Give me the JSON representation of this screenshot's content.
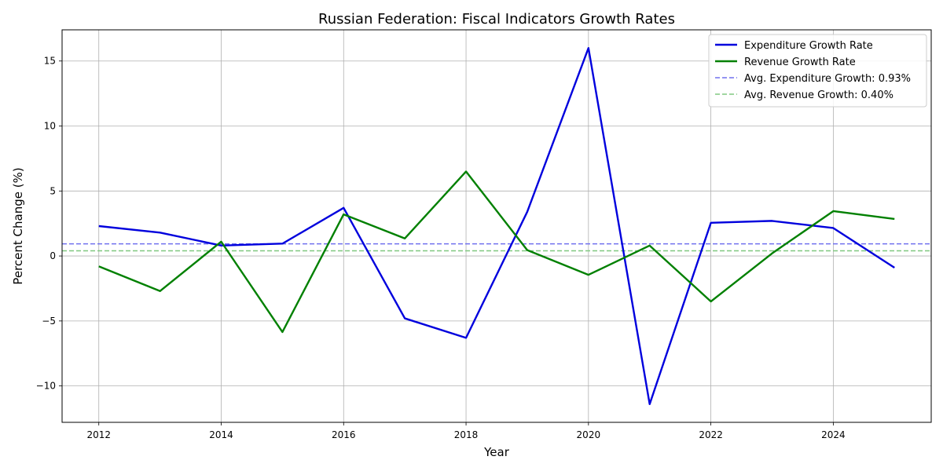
{
  "chart_data": {
    "type": "line",
    "title": "Russian Federation: Fiscal Indicators Growth Rates",
    "xlabel": "Year",
    "ylabel": "Percent Change (%)",
    "xlim": [
      2011.4,
      2025.6
    ],
    "ylim": [
      -12.8,
      17.4
    ],
    "xticks": [
      2012,
      2014,
      2016,
      2018,
      2020,
      2022,
      2024
    ],
    "xtick_labels": [
      "2012",
      "2014",
      "2016",
      "2018",
      "2020",
      "2022",
      "2024"
    ],
    "yticks": [
      -10,
      -5,
      0,
      5,
      10,
      15
    ],
    "ytick_labels": [
      "−10",
      "−5",
      "0",
      "5",
      "10",
      "15"
    ],
    "grid": true,
    "legend_position": "top-right",
    "x": [
      2012,
      2013,
      2014,
      2015,
      2016,
      2017,
      2018,
      2019,
      2020,
      2021,
      2022,
      2023,
      2024,
      2025
    ],
    "series": [
      {
        "name": "Expenditure Growth Rate",
        "color": "#0000dd",
        "style": "solid",
        "values": [
          2.3,
          1.8,
          0.8,
          0.95,
          3.7,
          -4.8,
          -6.3,
          3.4,
          16.0,
          -11.4,
          2.55,
          2.7,
          2.15,
          -0.9
        ]
      },
      {
        "name": "Revenue Growth Rate",
        "color": "#008000",
        "style": "solid",
        "values": [
          -0.8,
          -2.7,
          1.1,
          -5.85,
          3.2,
          1.35,
          6.5,
          0.45,
          -1.45,
          0.8,
          -3.5,
          0.2,
          3.45,
          2.85
        ]
      }
    ],
    "reference_lines": [
      {
        "name": "Avg. Expenditure Growth: 0.93%",
        "value": 0.93,
        "color": "#7070ee",
        "style": "dashed"
      },
      {
        "name": "Avg. Revenue Growth: 0.40%",
        "value": 0.4,
        "color": "#80c880",
        "style": "dashed"
      }
    ]
  }
}
